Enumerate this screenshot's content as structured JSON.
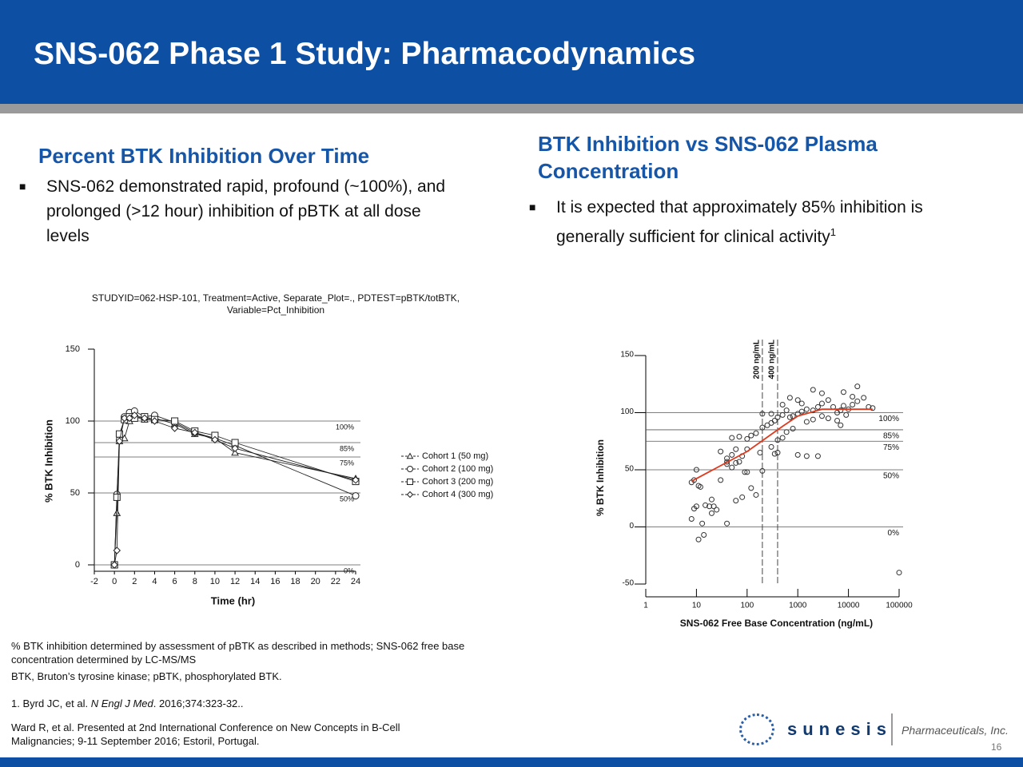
{
  "slide_title": "SNS-062 Phase 1 Study: Pharmacodynamics",
  "left_heading": "Percent BTK Inhibition Over Time",
  "left_bullet": "SNS-062 demonstrated rapid, profound (~100%), and prolonged (>12 hour) inhibition of pBTK at all dose levels",
  "right_heading": "BTK Inhibition vs SNS-062 Plasma Concentration",
  "right_bullet": "It is expected that approximately 85% inhibition is generally sufficient for clinical activity",
  "right_bullet_sup": "1",
  "footnotes": [
    "% BTK inhibition determined by assessment of pBTK as described in methods; SNS-062 free base concentration determined by LC-MS/MS",
    "BTK, Bruton’s tyrosine kinase; pBTK, phosphorylated BTK."
  ],
  "reference_1": {
    "text": "1. Byrd JC, et al. ",
    "journal": "N Engl J Med",
    "rest": ". 2016;374:323-32.."
  },
  "reference_2": "Ward R, et al. Presented at 2nd International Conference on New Concepts in B-Cell Malignancies; 9-11 September 2016; Estoril, Portugal.",
  "logo_name": "sunesis",
  "logo_tagline": "Pharmaceuticals, Inc.",
  "page_number": "16",
  "chart_data": [
    {
      "type": "line",
      "title": [
        "STUDYID=062-HSP-101, Treatment=Active, Separate_Plot=., PDTEST=pBTK/totBTK,",
        "Variable=Pct_Inhibition"
      ],
      "xlabel": "Time (hr)",
      "ylabel": "% BTK Inhibition",
      "x": [
        0,
        0.25,
        0.5,
        1,
        1.5,
        2,
        3,
        4,
        6,
        8,
        10,
        12,
        24
      ],
      "xlim": [
        -2,
        24
      ],
      "xticks": [
        -2,
        0,
        2,
        4,
        6,
        8,
        10,
        12,
        14,
        16,
        18,
        20,
        22,
        24
      ],
      "ylim": [
        0,
        150
      ],
      "yticks": [
        0,
        50,
        100,
        150
      ],
      "reference_lines": [
        {
          "value": 100,
          "label": "100%"
        },
        {
          "value": 85,
          "label": "85%"
        },
        {
          "value": 75,
          "label": "75%"
        },
        {
          "value": 50,
          "label": "50%"
        },
        {
          "value": 0,
          "label": "0%"
        }
      ],
      "series": [
        {
          "name": "Cohort 1 (50 mg)",
          "color": "#222222",
          "marker": "triangle",
          "values": [
            0,
            36,
            86,
            88,
            100,
            103,
            101,
            102,
            98,
            91,
            88,
            78,
            60
          ]
        },
        {
          "name": "Cohort 2 (100 mg)",
          "color": "#222222",
          "marker": "circle",
          "values": [
            0,
            49,
            87,
            103,
            106,
            107,
            103,
            104,
            99,
            92,
            88,
            83,
            48
          ]
        },
        {
          "name": "Cohort 3 (200 mg)",
          "color": "#222222",
          "marker": "square",
          "values": [
            0,
            47,
            91,
            101,
            103,
            102,
            103,
            101,
            100,
            93,
            90,
            85,
            58
          ]
        },
        {
          "name": "Cohort 4 (300 mg)",
          "color": "#222222",
          "marker": "diamond",
          "values": [
            0,
            10,
            86,
            102,
            102,
            104,
            102,
            100,
            95,
            92,
            87,
            81,
            59
          ]
        }
      ]
    },
    {
      "type": "scatter",
      "xlabel": "SNS-062 Free Base Concentration (ng/mL)",
      "ylabel": "% BTK Inhibition",
      "xscale": "log",
      "xlim": [
        1,
        100000
      ],
      "xticks": [
        1,
        10,
        100,
        1000,
        10000,
        100000
      ],
      "ylim": [
        -50,
        150
      ],
      "yticks": [
        -50,
        0,
        50,
        100,
        150
      ],
      "reference_lines": [
        {
          "value": 100,
          "label": "100%"
        },
        {
          "value": 85,
          "label": "85%"
        },
        {
          "value": 75,
          "label": "75%"
        },
        {
          "value": 50,
          "label": "50%"
        },
        {
          "value": 0,
          "label": "0%"
        }
      ],
      "vertical_lines": [
        {
          "value": 200,
          "label": "200 ng/mL"
        },
        {
          "value": 400,
          "label": "400 ng/mL"
        }
      ],
      "color": "#333333",
      "x": [
        8,
        9,
        10,
        11,
        12,
        9,
        10,
        15,
        18,
        22,
        20,
        8,
        13,
        11,
        14,
        20,
        25,
        40,
        30,
        40,
        40,
        50,
        60,
        70,
        80,
        100,
        120,
        150,
        60,
        80,
        40,
        50,
        100,
        60,
        30,
        50,
        70,
        100,
        120,
        150,
        90,
        180,
        200,
        250,
        300,
        350,
        400,
        500,
        300,
        200,
        600,
        700,
        800,
        1000,
        1200,
        1500,
        2000,
        2500,
        3000,
        4000,
        5000,
        6000,
        7000,
        8000,
        9000,
        10000,
        12000,
        15000,
        20000,
        25000,
        3000,
        4000,
        6000,
        7000,
        1500,
        2000,
        800,
        600,
        500,
        400,
        300,
        350,
        400,
        1000,
        1500,
        2500,
        200,
        700,
        1000,
        2000,
        3000,
        8000,
        15000,
        12000,
        30000,
        100000,
        1200,
        500
      ],
      "values": [
        39,
        41,
        50,
        36,
        35,
        16,
        18,
        19,
        18,
        18,
        24,
        7,
        3,
        -11,
        -7,
        12,
        15,
        3,
        41,
        55,
        57,
        52,
        56,
        57,
        62,
        48,
        34,
        28,
        23,
        26,
        60,
        63,
        68,
        68,
        66,
        78,
        79,
        77,
        80,
        82,
        48,
        65,
        87,
        89,
        91,
        93,
        96,
        98,
        99,
        99,
        102,
        96,
        97,
        99,
        101,
        103,
        102,
        105,
        108,
        111,
        105,
        100,
        102,
        106,
        98,
        103,
        107,
        110,
        113,
        105,
        97,
        95,
        93,
        89,
        92,
        94,
        86,
        83,
        78,
        76,
        70,
        64,
        65,
        63,
        62,
        62,
        49,
        113,
        111,
        120,
        117,
        118,
        123,
        114,
        104,
        -40,
        108,
        107
      ],
      "fit": {
        "color": "#e03a1e",
        "x": [
          8,
          100,
          500,
          1000,
          3000,
          30000
        ],
        "values": [
          40,
          66,
          88,
          97,
          103,
          103
        ]
      }
    }
  ]
}
